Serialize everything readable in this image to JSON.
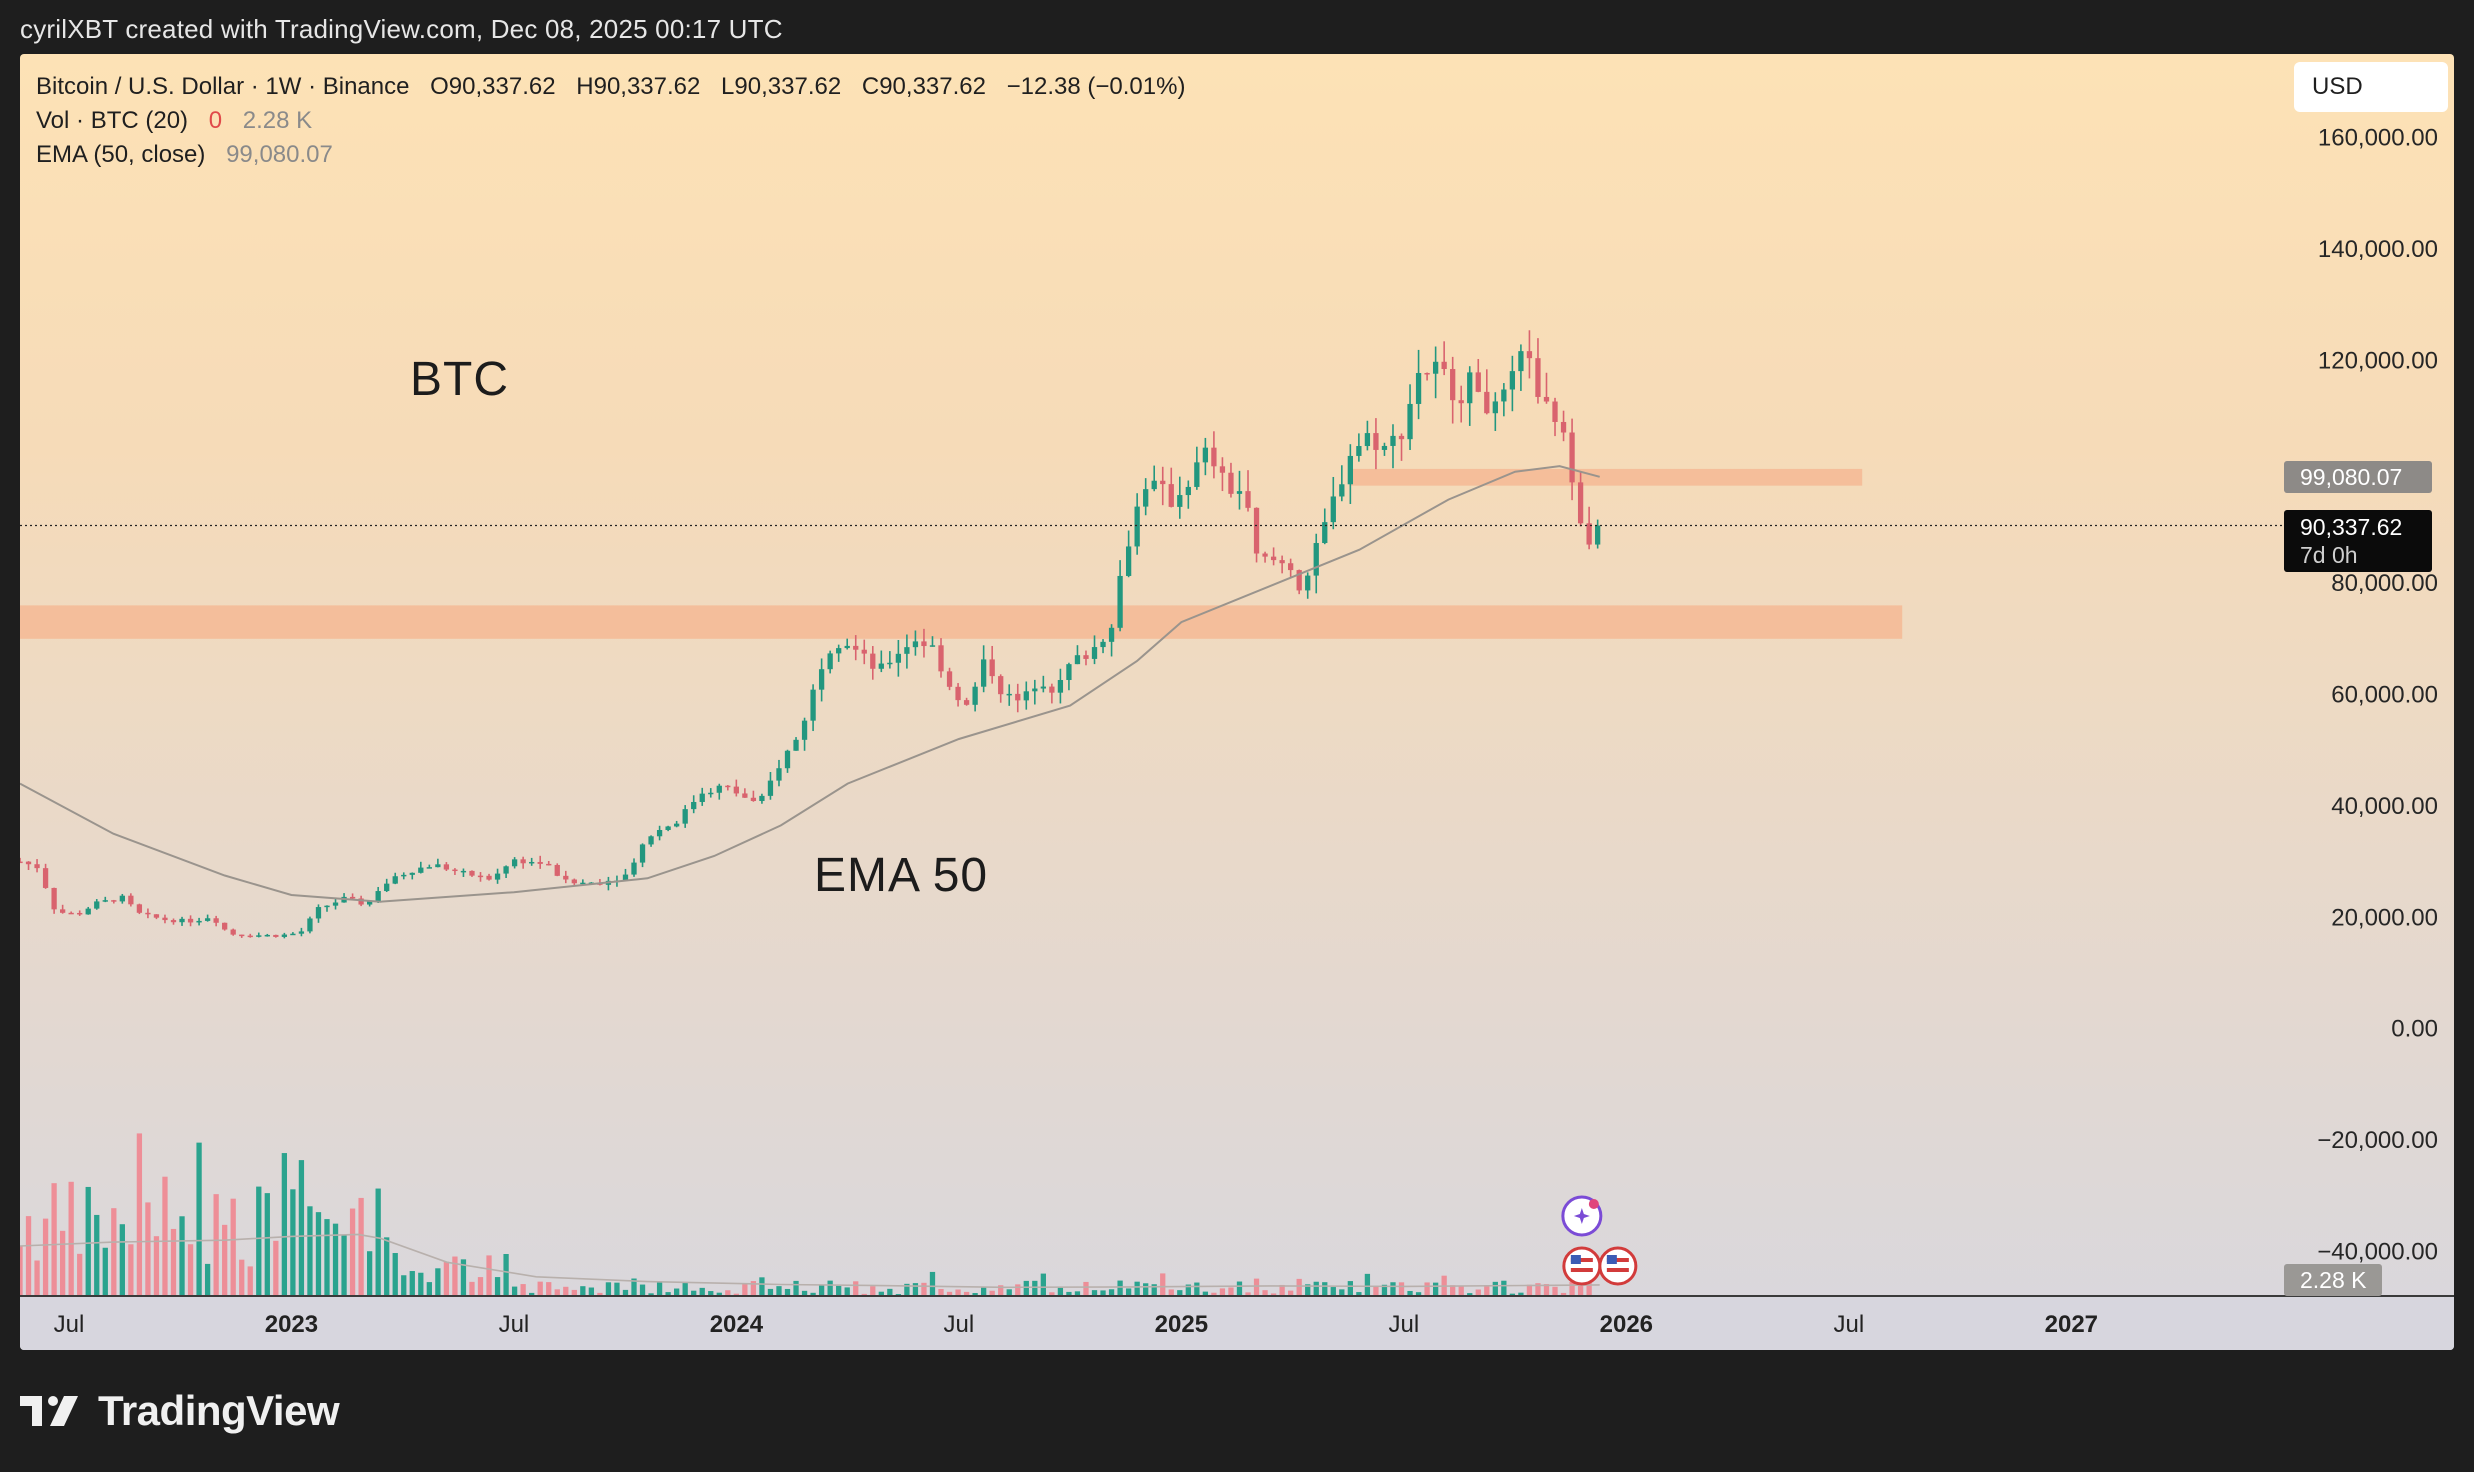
{
  "header": {
    "caption": "cyrilXBT created with TradingView.com, Dec 08, 2025 00:17 UTC"
  },
  "legend": {
    "symbol": "Bitcoin / U.S. Dollar · 1W · Binance",
    "open_label": "O",
    "open": "90,337.62",
    "high_label": "H",
    "high": "90,337.62",
    "low_label": "L",
    "low": "90,337.62",
    "close_label": "C",
    "close": "90,337.62",
    "change": "−12.38 (−0.01%)",
    "vol_label": "Vol · BTC (20)",
    "vol_value1": "0",
    "vol_value2": "2.28 K",
    "ema_label": "EMA (50, close)",
    "ema_value": "99,080.07"
  },
  "currency_button": "USD",
  "annotations": {
    "btc": "BTC",
    "ema": "EMA 50"
  },
  "price_tags": {
    "ema": "99,080.07",
    "last": "90,337.62",
    "countdown": "7d 0h",
    "volume": "2.28 K"
  },
  "brand": {
    "name": "TradingView"
  },
  "colors": {
    "up": "#22977f",
    "down": "#d9636e",
    "vol_up": "#21a08a",
    "vol_down": "#ee8a94",
    "zone": "#f4b994",
    "ema": "#9a948d",
    "ma_vol": "#b8b0ac"
  },
  "chart_data": {
    "type": "candlestick",
    "symbol": "BTCUSD",
    "interval": "1W",
    "ylim": [
      -48000,
      175000
    ],
    "y_ticks": [
      {
        "v": 160000,
        "label": "160,000.00"
      },
      {
        "v": 140000,
        "label": "140,000.00"
      },
      {
        "v": 120000,
        "label": "120,000.00"
      },
      {
        "v": 80000,
        "label": "80,000.00"
      },
      {
        "v": 60000,
        "label": "60,000.00"
      },
      {
        "v": 40000,
        "label": "40,000.00"
      },
      {
        "v": 20000,
        "label": "20,000.00"
      },
      {
        "v": 0,
        "label": "0.00"
      },
      {
        "v": -20000,
        "label": "−20,000.00"
      },
      {
        "v": -40000,
        "label": "−40,000.00"
      }
    ],
    "x_ticks": [
      {
        "t": 2022.5,
        "label": "Jul",
        "bold": false
      },
      {
        "t": 2023.0,
        "label": "2023",
        "bold": true
      },
      {
        "t": 2023.5,
        "label": "Jul",
        "bold": false
      },
      {
        "t": 2024.0,
        "label": "2024",
        "bold": true
      },
      {
        "t": 2024.5,
        "label": "Jul",
        "bold": false
      },
      {
        "t": 2025.0,
        "label": "2025",
        "bold": true
      },
      {
        "t": 2025.5,
        "label": "Jul",
        "bold": false
      },
      {
        "t": 2026.0,
        "label": "2026",
        "bold": true
      },
      {
        "t": 2026.5,
        "label": "Jul",
        "bold": false
      },
      {
        "t": 2027.0,
        "label": "2027",
        "bold": true
      }
    ],
    "xlim": [
      2022.39,
      2027.86
    ],
    "zones": [
      {
        "from": 2022.39,
        "to": 2026.62,
        "low": 70000,
        "high": 76000
      },
      {
        "from": 2025.38,
        "to": 2026.53,
        "low": 97500,
        "high": 100500
      }
    ],
    "last_price": 90337.62,
    "ema_last": 99080.07,
    "price_path": [
      [
        2022.39,
        30000
      ],
      [
        2022.43,
        29000
      ],
      [
        2022.47,
        21000
      ],
      [
        2022.52,
        20500
      ],
      [
        2022.56,
        22500
      ],
      [
        2022.62,
        23500
      ],
      [
        2022.66,
        20500
      ],
      [
        2022.72,
        19500
      ],
      [
        2022.78,
        19300
      ],
      [
        2022.82,
        20200
      ],
      [
        2022.86,
        17000
      ],
      [
        2022.92,
        16800
      ],
      [
        2022.97,
        16700
      ],
      [
        2023.02,
        17200
      ],
      [
        2023.06,
        21500
      ],
      [
        2023.12,
        23400
      ],
      [
        2023.17,
        22200
      ],
      [
        2023.2,
        25500
      ],
      [
        2023.26,
        28200
      ],
      [
        2023.32,
        29500
      ],
      [
        2023.38,
        28000
      ],
      [
        2023.45,
        26800
      ],
      [
        2023.5,
        30300
      ],
      [
        2023.57,
        29600
      ],
      [
        2023.62,
        26100
      ],
      [
        2023.7,
        26300
      ],
      [
        2023.75,
        27500
      ],
      [
        2023.8,
        34500
      ],
      [
        2023.87,
        37500
      ],
      [
        2023.92,
        42500
      ],
      [
        2023.97,
        43500
      ],
      [
        2024.02,
        41500
      ],
      [
        2024.05,
        40000
      ],
      [
        2024.1,
        48000
      ],
      [
        2024.14,
        52500
      ],
      [
        2024.18,
        62500
      ],
      [
        2024.2,
        68000
      ],
      [
        2024.24,
        70000
      ],
      [
        2024.28,
        67000
      ],
      [
        2024.32,
        64000
      ],
      [
        2024.36,
        67500
      ],
      [
        2024.4,
        70000
      ],
      [
        2024.44,
        68500
      ],
      [
        2024.48,
        61500
      ],
      [
        2024.52,
        57500
      ],
      [
        2024.56,
        66500
      ],
      [
        2024.6,
        60000
      ],
      [
        2024.64,
        58500
      ],
      [
        2024.68,
        63000
      ],
      [
        2024.72,
        60500
      ],
      [
        2024.75,
        65500
      ],
      [
        2024.8,
        68000
      ],
      [
        2024.84,
        72000
      ],
      [
        2024.86,
        80000
      ],
      [
        2024.89,
        91000
      ],
      [
        2024.92,
        98000
      ],
      [
        2024.95,
        97000
      ],
      [
        2024.98,
        94500
      ],
      [
        2025.02,
        99000
      ],
      [
        2025.06,
        104000
      ],
      [
        2025.1,
        97000
      ],
      [
        2025.14,
        96500
      ],
      [
        2025.17,
        84000
      ],
      [
        2025.21,
        84000
      ],
      [
        2025.25,
        83000
      ],
      [
        2025.27,
        78500
      ],
      [
        2025.3,
        85000
      ],
      [
        2025.34,
        94500
      ],
      [
        2025.38,
        103500
      ],
      [
        2025.42,
        106500
      ],
      [
        2025.46,
        104000
      ],
      [
        2025.5,
        108000
      ],
      [
        2025.53,
        118000
      ],
      [
        2025.58,
        118500
      ],
      [
        2025.62,
        113500
      ],
      [
        2025.66,
        117000
      ],
      [
        2025.7,
        110000
      ],
      [
        2025.74,
        115500
      ],
      [
        2025.78,
        123000
      ],
      [
        2025.8,
        112000
      ],
      [
        2025.84,
        110000
      ],
      [
        2025.87,
        103000
      ],
      [
        2025.89,
        95000
      ],
      [
        2025.91,
        87000
      ],
      [
        2025.93,
        91000
      ],
      [
        2025.94,
        90337.62
      ]
    ],
    "ema_path": [
      [
        2022.39,
        44000
      ],
      [
        2022.6,
        35000
      ],
      [
        2022.85,
        27500
      ],
      [
        2023.0,
        24000
      ],
      [
        2023.2,
        22800
      ],
      [
        2023.5,
        24500
      ],
      [
        2023.8,
        27000
      ],
      [
        2023.95,
        31000
      ],
      [
        2024.1,
        36500
      ],
      [
        2024.25,
        44000
      ],
      [
        2024.5,
        52000
      ],
      [
        2024.75,
        58000
      ],
      [
        2024.9,
        66000
      ],
      [
        2025.0,
        73000
      ],
      [
        2025.2,
        79500
      ],
      [
        2025.4,
        86000
      ],
      [
        2025.6,
        95000
      ],
      [
        2025.75,
        100000
      ],
      [
        2025.85,
        101000
      ],
      [
        2025.94,
        99080.07
      ]
    ],
    "volume_scale_max": 2200,
    "volume_ma": [
      [
        2022.39,
        520
      ],
      [
        2022.6,
        560
      ],
      [
        2022.85,
        580
      ],
      [
        2023.0,
        620
      ],
      [
        2023.15,
        640
      ],
      [
        2023.2,
        600
      ],
      [
        2023.35,
        350
      ],
      [
        2023.55,
        200
      ],
      [
        2023.8,
        150
      ],
      [
        2024.1,
        120
      ],
      [
        2024.3,
        110
      ],
      [
        2024.6,
        90
      ],
      [
        2024.9,
        95
      ],
      [
        2025.2,
        105
      ],
      [
        2025.5,
        100
      ],
      [
        2025.8,
        110
      ],
      [
        2025.94,
        115
      ]
    ]
  }
}
